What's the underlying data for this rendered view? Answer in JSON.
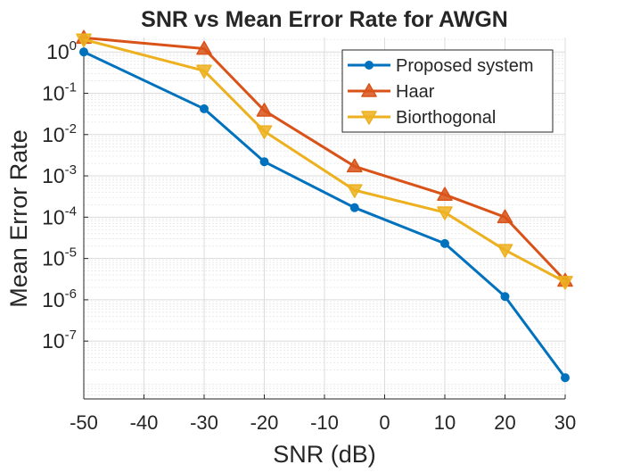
{
  "chart_data": {
    "type": "line",
    "title": "SNR vs Mean Error Rate for AWGN",
    "xlabel": "SNR (dB)",
    "ylabel": "Mean Error Rate",
    "xlim": [
      -50,
      30
    ],
    "ylim_exponent": [
      -8.4,
      0.35
    ],
    "yscale": "log",
    "grid": true,
    "minor_grid": true,
    "legend_position": "top-right",
    "x_ticks": [
      -50,
      -40,
      -30,
      -20,
      -10,
      0,
      10,
      20,
      30
    ],
    "y_tick_exponents": [
      -7,
      -6,
      -5,
      -4,
      -3,
      -2,
      -1,
      0
    ],
    "x": [
      -50,
      -30,
      -20,
      -5,
      10,
      20,
      30
    ],
    "series": [
      {
        "name": "Proposed system",
        "color": "#0072BD",
        "marker": "circle",
        "values": [
          1.0,
          0.042,
          0.0022,
          0.00017,
          2.3e-05,
          1.2e-06,
          1.3e-08
        ]
      },
      {
        "name": "Haar",
        "color": "#D95319",
        "marker": "triangle-up",
        "values": [
          2.2,
          1.2,
          0.038,
          0.0017,
          0.00035,
          0.0001,
          2.9e-06
        ]
      },
      {
        "name": "Biorthogonal",
        "color": "#EDB120",
        "marker": "triangle-down",
        "values": [
          2.0,
          0.35,
          0.012,
          0.00045,
          0.00013,
          1.6e-05,
          2.7e-06
        ]
      }
    ]
  }
}
